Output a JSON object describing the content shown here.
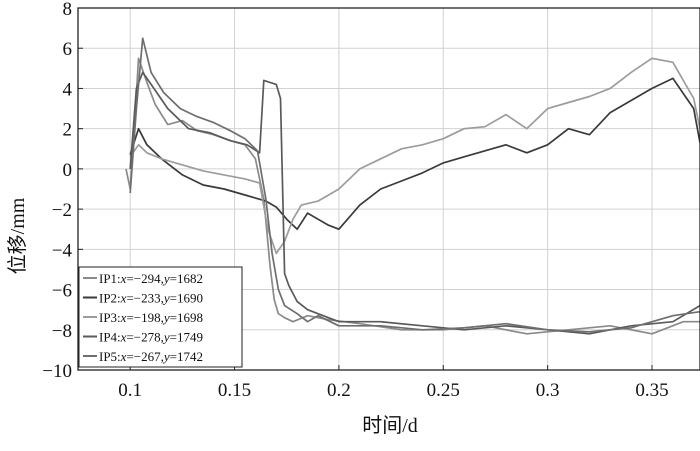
{
  "chart_data": {
    "type": "line",
    "xlabel": "时间/d",
    "ylabel": "位移/mm",
    "xlim": [
      0.075,
      0.373
    ],
    "ylim": [
      -10,
      8
    ],
    "xticks": [
      0.1,
      0.15,
      0.2,
      0.25,
      0.3,
      0.35
    ],
    "xtick_labels": [
      "0.1",
      "0.15",
      "0.2",
      "0.25",
      "0.3",
      "0.35"
    ],
    "yticks": [
      -10,
      -8,
      -6,
      -4,
      -2,
      0,
      2,
      4,
      6,
      8
    ],
    "ytick_labels": [
      "−10",
      "−8",
      "−6",
      "−4",
      "−2",
      "0",
      "2",
      "4",
      "6",
      "8"
    ],
    "grid": true,
    "legend_position": "bottom-left",
    "colors": {
      "IP1": "#8a8a8a",
      "IP2": "#3a3a3a",
      "IP3": "#9c9c9c",
      "IP4": "#5a5a5a",
      "IP5": "#6e6e6e"
    },
    "series": [
      {
        "name": "IP1:x=−294,y=1682",
        "legend": {
          "id": "IP1",
          "x": "−294",
          "y": "1682"
        },
        "x": [
          0.098,
          0.1,
          0.102,
          0.104,
          0.108,
          0.112,
          0.118,
          0.125,
          0.132,
          0.14,
          0.148,
          0.155,
          0.16,
          0.164,
          0.167,
          0.169,
          0.171,
          0.174,
          0.178,
          0.185,
          0.195,
          0.21,
          0.23,
          0.25,
          0.27,
          0.29,
          0.31,
          0.33,
          0.35,
          0.365,
          0.373
        ],
        "y": [
          0.0,
          -1.0,
          2.0,
          5.5,
          4.3,
          3.2,
          2.2,
          2.4,
          1.9,
          1.7,
          1.4,
          1.2,
          0.5,
          -1.5,
          -4.8,
          -6.5,
          -7.2,
          -7.4,
          -7.6,
          -7.3,
          -7.5,
          -7.7,
          -8.0,
          -8.0,
          -7.8,
          -8.2,
          -8.0,
          -7.8,
          -8.2,
          -7.6,
          -7.6
        ]
      },
      {
        "name": "IP2:x=−233,y=1690",
        "legend": {
          "id": "IP2",
          "x": "−233",
          "y": "1690"
        },
        "x": [
          0.1,
          0.104,
          0.108,
          0.115,
          0.125,
          0.135,
          0.145,
          0.155,
          0.165,
          0.17,
          0.175,
          0.18,
          0.185,
          0.19,
          0.195,
          0.2,
          0.21,
          0.22,
          0.23,
          0.24,
          0.25,
          0.26,
          0.27,
          0.28,
          0.29,
          0.3,
          0.31,
          0.32,
          0.33,
          0.34,
          0.35,
          0.36,
          0.37,
          0.373
        ],
        "y": [
          0.7,
          2.0,
          1.2,
          0.5,
          -0.3,
          -0.8,
          -1.0,
          -1.3,
          -1.6,
          -1.9,
          -2.5,
          -3.0,
          -2.2,
          -2.5,
          -2.8,
          -3.0,
          -1.8,
          -1.0,
          -0.6,
          -0.2,
          0.3,
          0.6,
          0.9,
          1.2,
          0.8,
          1.2,
          2.0,
          1.7,
          2.8,
          3.4,
          4.0,
          4.5,
          3.0,
          1.3
        ]
      },
      {
        "name": "IP3:x=−198,y=1698",
        "legend": {
          "id": "IP3",
          "x": "−198",
          "y": "1698"
        },
        "x": [
          0.1,
          0.104,
          0.108,
          0.115,
          0.125,
          0.135,
          0.145,
          0.155,
          0.162,
          0.166,
          0.17,
          0.174,
          0.178,
          0.182,
          0.19,
          0.2,
          0.21,
          0.22,
          0.23,
          0.24,
          0.25,
          0.26,
          0.27,
          0.28,
          0.29,
          0.3,
          0.31,
          0.32,
          0.33,
          0.34,
          0.35,
          0.36,
          0.37,
          0.373
        ],
        "y": [
          0.6,
          1.2,
          0.8,
          0.5,
          0.2,
          -0.1,
          -0.3,
          -0.5,
          -0.7,
          -3.0,
          -4.2,
          -3.6,
          -2.5,
          -1.8,
          -1.6,
          -1.0,
          0.0,
          0.5,
          1.0,
          1.2,
          1.5,
          2.0,
          2.1,
          2.7,
          2.0,
          3.0,
          3.3,
          3.6,
          4.0,
          4.8,
          5.5,
          5.3,
          3.5,
          2.0
        ]
      },
      {
        "name": "IP4:x=−278,y=1749",
        "legend": {
          "id": "IP4",
          "x": "−278",
          "y": "1749"
        },
        "x": [
          0.1,
          0.103,
          0.106,
          0.11,
          0.118,
          0.128,
          0.138,
          0.148,
          0.156,
          0.162,
          0.164,
          0.167,
          0.17,
          0.172,
          0.174,
          0.176,
          0.18,
          0.185,
          0.19,
          0.2,
          0.22,
          0.24,
          0.26,
          0.28,
          0.3,
          0.32,
          0.34,
          0.36,
          0.373
        ],
        "y": [
          0.0,
          4.0,
          4.8,
          4.2,
          3.0,
          2.0,
          1.8,
          1.4,
          1.2,
          0.8,
          4.4,
          4.3,
          4.2,
          3.5,
          -5.2,
          -5.8,
          -6.6,
          -7.0,
          -7.2,
          -7.6,
          -7.6,
          -7.8,
          -8.0,
          -7.8,
          -8.0,
          -8.2,
          -7.8,
          -7.6,
          -6.8
        ]
      },
      {
        "name": "IP5:x=−267,y=1742",
        "legend": {
          "id": "IP5",
          "x": "−267",
          "y": "1742"
        },
        "x": [
          0.1,
          0.103,
          0.106,
          0.11,
          0.116,
          0.124,
          0.132,
          0.14,
          0.148,
          0.155,
          0.161,
          0.165,
          0.168,
          0.171,
          0.174,
          0.177,
          0.18,
          0.185,
          0.19,
          0.2,
          0.22,
          0.24,
          0.26,
          0.28,
          0.3,
          0.32,
          0.34,
          0.36,
          0.373
        ],
        "y": [
          -1.2,
          3.0,
          6.5,
          4.8,
          3.8,
          3.0,
          2.6,
          2.3,
          1.9,
          1.5,
          0.9,
          -1.5,
          -4.2,
          -6.0,
          -6.8,
          -7.0,
          -7.2,
          -7.6,
          -7.3,
          -7.8,
          -7.8,
          -8.0,
          -7.9,
          -7.7,
          -8.0,
          -8.1,
          -7.9,
          -7.3,
          -7.1
        ]
      }
    ]
  }
}
